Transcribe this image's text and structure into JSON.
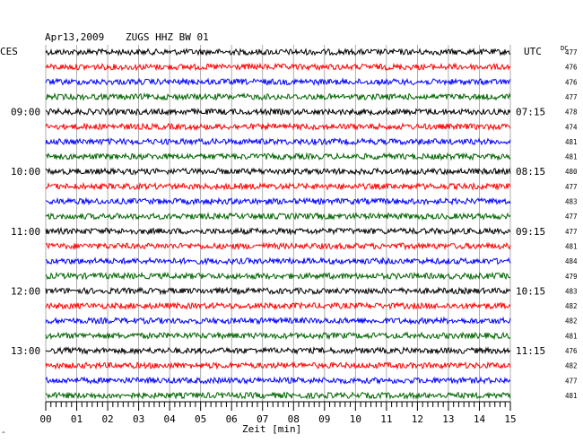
{
  "header": {
    "date": "Apr13,2009",
    "station": "ZUGS HHZ BW 01",
    "left_zone": "CES",
    "right_zone": "UTC",
    "dc_label": "DC"
  },
  "chart_data": {
    "type": "line",
    "title": "Apr13,2009   ZUGS HHZ BW 01",
    "xlabel": "Zeit [min]",
    "xlim": [
      0,
      15
    ],
    "x_ticks": [
      "00",
      "01",
      "02",
      "03",
      "04",
      "05",
      "06",
      "07",
      "08",
      "09",
      "10",
      "11",
      "12",
      "13",
      "14",
      "15"
    ],
    "trace_colors": [
      "#000000",
      "#ff0000",
      "#0000ff",
      "#006400"
    ],
    "left_time_labels": [
      "09:00",
      "10:00",
      "11:00",
      "12:00",
      "13:00"
    ],
    "right_time_labels": [
      "07:15",
      "08:15",
      "09:15",
      "10:15",
      "11:15"
    ],
    "time_label_rows": [
      4,
      8,
      12,
      16,
      20
    ],
    "dc_values": [
      "477",
      "476",
      "476",
      "477",
      "478",
      "474",
      "481",
      "481",
      "480",
      "477",
      "483",
      "477",
      "477",
      "481",
      "484",
      "479",
      "483",
      "482",
      "482",
      "481",
      "476",
      "482",
      "477",
      "481"
    ],
    "corner_mark": "^"
  }
}
